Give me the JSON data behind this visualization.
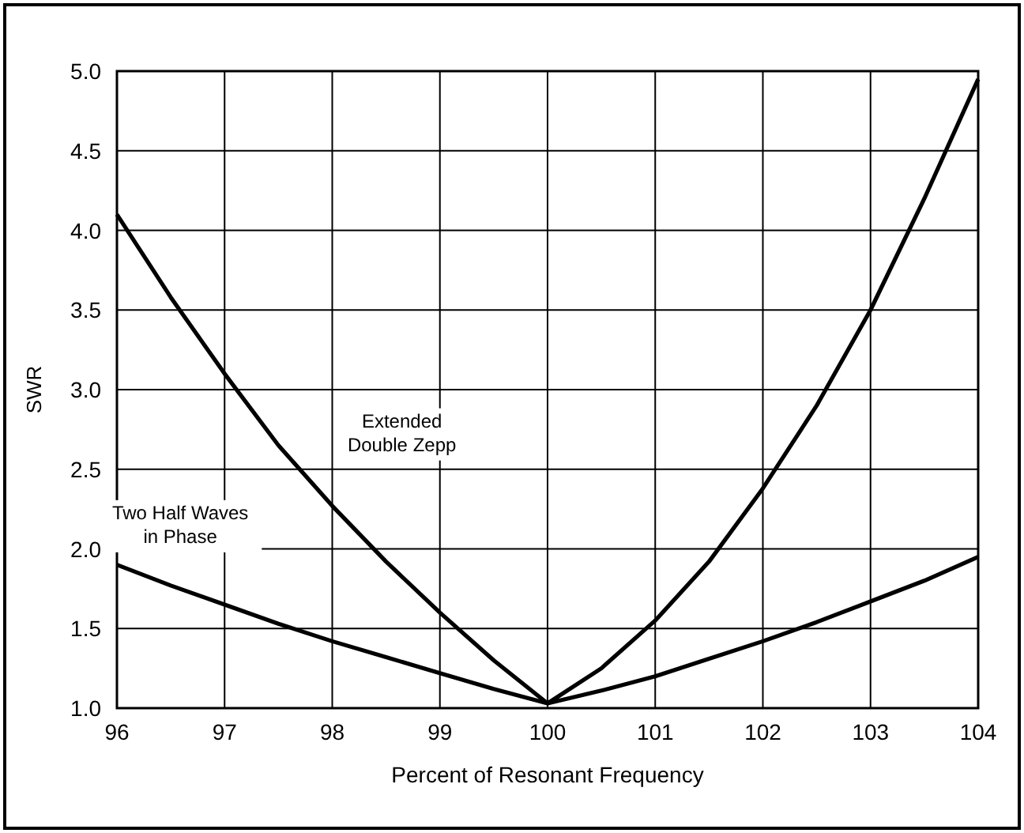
{
  "chart_data": {
    "type": "line",
    "xlabel": "Percent of Resonant Frequency",
    "ylabel": "SWR",
    "x": [
      96,
      96.5,
      97,
      97.5,
      98,
      98.5,
      99,
      99.5,
      100,
      100.5,
      101,
      101.5,
      102,
      102.5,
      103,
      103.5,
      104
    ],
    "series": [
      {
        "name": "Extended\nDouble Zepp",
        "color": "#000000",
        "values": [
          4.1,
          3.58,
          3.1,
          2.65,
          2.27,
          1.92,
          1.6,
          1.3,
          1.03,
          1.25,
          1.55,
          1.92,
          2.38,
          2.9,
          3.5,
          4.2,
          4.95
        ]
      },
      {
        "name": "Two Half Waves\nin Phase",
        "color": "#000000",
        "values": [
          1.9,
          1.77,
          1.65,
          1.53,
          1.42,
          1.32,
          1.22,
          1.12,
          1.03,
          1.11,
          1.2,
          1.31,
          1.42,
          1.54,
          1.67,
          1.8,
          1.95
        ]
      }
    ],
    "xlim": [
      96,
      104
    ],
    "xticks": [
      96,
      97,
      98,
      99,
      100,
      101,
      102,
      103,
      104
    ],
    "ylim": [
      1,
      5
    ],
    "yticks": [
      {
        "value": 1,
        "label": "1.0"
      },
      {
        "value": 1.5,
        "label": "1.5"
      },
      {
        "value": 2,
        "label": "2.0"
      },
      {
        "value": 2.5,
        "label": "2.5"
      },
      {
        "value": 3,
        "label": "3.0"
      },
      {
        "value": 3.5,
        "label": "3.5"
      },
      {
        "value": 4,
        "label": "4.0"
      },
      {
        "value": 4.5,
        "label": "4.5"
      },
      {
        "value": 5,
        "label": "5.0"
      }
    ],
    "grid": true,
    "marker": "none",
    "line_style": "solid"
  }
}
